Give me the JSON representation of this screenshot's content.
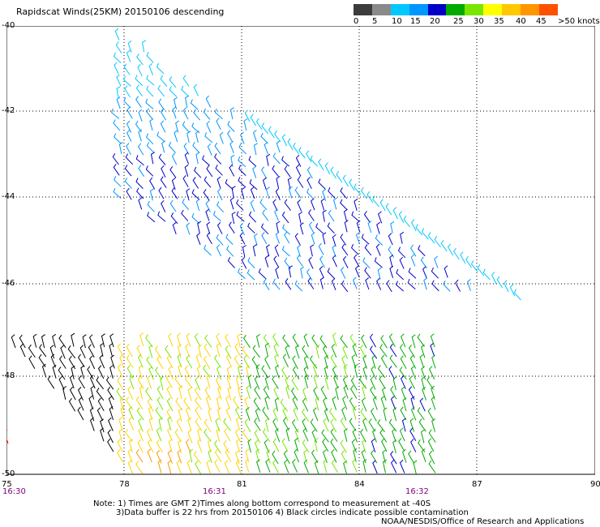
{
  "title": "Rapidscat Winds(25KM) 20150106 descending",
  "colorbar": {
    "labels": [
      "0",
      "5",
      "10",
      "15",
      "20",
      "25",
      "30",
      "35",
      "40",
      "45",
      ">50 knots"
    ],
    "colors": [
      "#3c3c3c",
      "#8a8a8a",
      "#00c8ff",
      "#0096ff",
      "#0000c8",
      "#00aa00",
      "#78e600",
      "#ffff00",
      "#ffc800",
      "#ff9600",
      "#ff5000",
      "#c80000",
      "#7d3c28",
      "#c8aaaa",
      "#ff00ff",
      "#c800ff",
      "#5a0096",
      "#2a0050"
    ]
  },
  "axes": {
    "y_labels": [
      "-40",
      "-42",
      "-44",
      "-46",
      "-48",
      "-50"
    ],
    "x_labels": [
      "75",
      "78",
      "81",
      "84",
      "87",
      "90"
    ],
    "times": [
      "16:30",
      "16:31",
      "16:32"
    ]
  },
  "wind_colors": {
    "calm": "#000000",
    "light": "#00c8ff",
    "moderate": "#0096ff",
    "strong": "#0000c8",
    "green": "#00aa00",
    "lime": "#78e600",
    "yellow": "#ffd200",
    "orange": "#ff9600",
    "red": "#ff0000"
  },
  "notes": {
    "line1": "Note: 1) Times are GMT 2)Times along bottom correspond to measurement at -40S",
    "line2": "3)Data buffer is 22 hrs from 20150106 4) Black circles indicate possible contamination",
    "credit": "NOAA/NESDIS/Office of Research and Applications"
  }
}
